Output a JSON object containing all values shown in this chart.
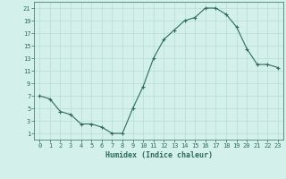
{
  "x": [
    0,
    1,
    2,
    3,
    4,
    5,
    6,
    7,
    8,
    9,
    10,
    11,
    12,
    13,
    14,
    15,
    16,
    17,
    18,
    19,
    20,
    21,
    22,
    23
  ],
  "y": [
    7,
    6.5,
    4.5,
    4,
    2.5,
    2.5,
    2,
    1,
    1,
    5,
    8.5,
    13,
    16,
    17.5,
    19,
    19.5,
    21,
    21,
    20,
    18,
    14.5,
    12,
    12,
    11.5
  ],
  "line_color": "#2d6b5e",
  "marker": "+",
  "bg_color": "#d4f0eb",
  "grid_color": "#b8ddd7",
  "xlabel": "Humidex (Indice chaleur)",
  "xlabel_color": "#2d6b5e",
  "yticks": [
    1,
    3,
    5,
    7,
    9,
    11,
    13,
    15,
    17,
    19,
    21
  ],
  "xticks": [
    0,
    1,
    2,
    3,
    4,
    5,
    6,
    7,
    8,
    9,
    10,
    11,
    12,
    13,
    14,
    15,
    16,
    17,
    18,
    19,
    20,
    21,
    22,
    23
  ],
  "xtick_labels": [
    "0",
    "1",
    "2",
    "3",
    "4",
    "5",
    "6",
    "7",
    "8",
    "9",
    "10",
    "11",
    "12",
    "13",
    "14",
    "15",
    "16",
    "17",
    "18",
    "19",
    "20",
    "21",
    "22",
    "23"
  ],
  "ylim": [
    0,
    22
  ],
  "xlim": [
    -0.5,
    23.5
  ]
}
